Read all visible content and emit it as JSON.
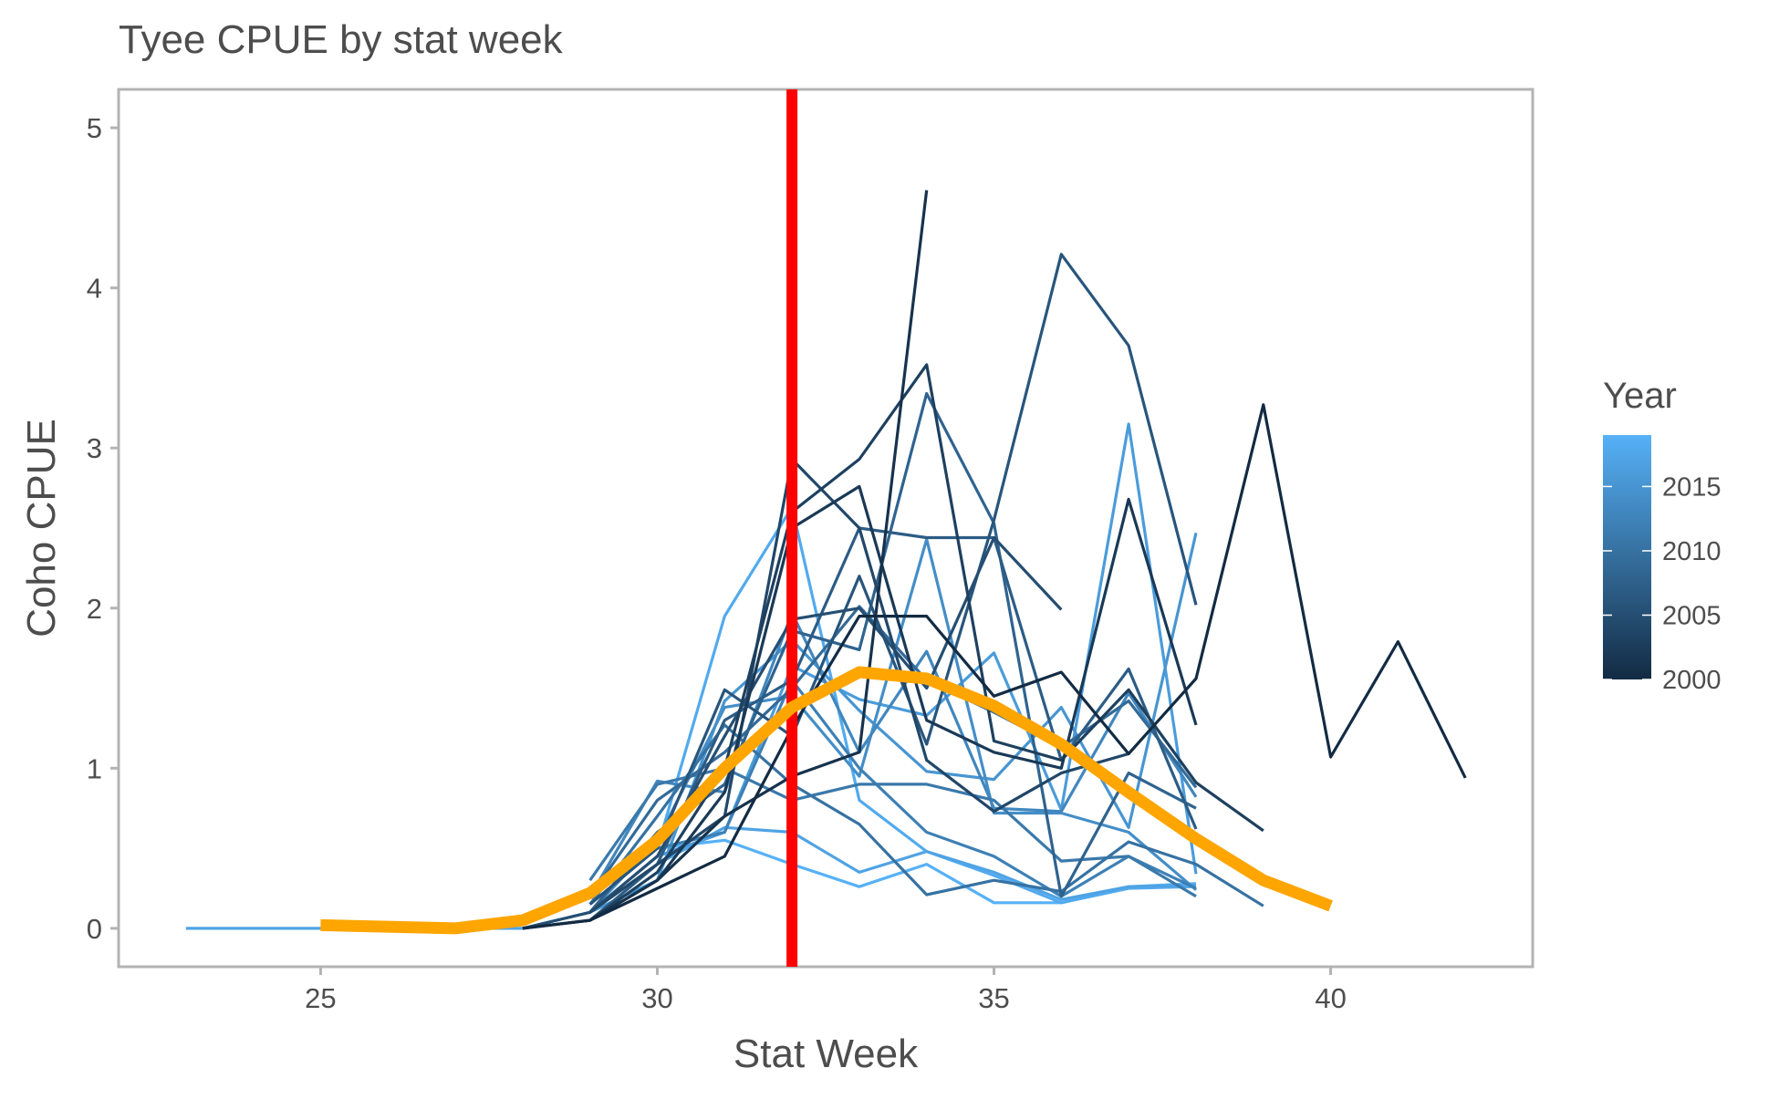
{
  "chart_data": {
    "type": "line",
    "title": "Tyee CPUE by stat week",
    "xlabel": "Stat Week",
    "ylabel": "Coho CPUE",
    "xlim": [
      22.0,
      43.0
    ],
    "ylim": [
      -0.24,
      5.24
    ],
    "x_ticks": [
      "25",
      "30",
      "35",
      "40"
    ],
    "y_ticks": [
      "0",
      "1",
      "2",
      "3",
      "4",
      "5"
    ],
    "grid": false,
    "legend": {
      "title": "Year",
      "position": "right",
      "type": "colorbar",
      "range": [
        2000,
        2019
      ],
      "ticks": [
        "2000",
        "2005",
        "2010",
        "2015"
      ],
      "color_low": "#132b43",
      "color_high": "#56b1f7"
    },
    "vline": {
      "x": 32,
      "color": "#ff0000"
    },
    "series": [
      {
        "year": 2000,
        "x": [
          28,
          29,
          30,
          31,
          32,
          33,
          34,
          35,
          36,
          37,
          38,
          39,
          40,
          41,
          42
        ],
        "y": [
          0,
          0.05,
          0.25,
          0.45,
          1.25,
          1.95,
          1.95,
          1.45,
          1.6,
          1.09,
          1.56,
          3.27,
          1.07,
          1.79,
          0.94
        ]
      },
      {
        "year": 2001,
        "x": [
          28,
          29,
          30,
          31,
          32,
          33,
          34
        ],
        "y": [
          0,
          0.05,
          0.3,
          0.7,
          0.95,
          1.1,
          4.61
        ]
      },
      {
        "year": 2002,
        "x": [
          29,
          30,
          31,
          32,
          33,
          34,
          35,
          36,
          37,
          38
        ],
        "y": [
          0.05,
          0.3,
          0.85,
          2.5,
          2.76,
          1.3,
          1.1,
          1.0,
          2.68,
          1.27
        ]
      },
      {
        "year": 2003,
        "x": [
          29,
          30,
          31,
          32,
          33,
          34,
          35,
          36,
          37,
          38,
          39
        ],
        "y": [
          0.05,
          0.35,
          1.0,
          2.6,
          2.93,
          3.52,
          1.17,
          1.05,
          1.49,
          0.91,
          0.61
        ]
      },
      {
        "year": 2004,
        "x": [
          29,
          30,
          31,
          32,
          33,
          34,
          35,
          36,
          37
        ],
        "y": [
          0.1,
          0.4,
          0.7,
          2.93,
          2.5,
          1.05,
          0.73,
          0.97,
          1.09
        ]
      },
      {
        "year": 2005,
        "x": [
          28,
          29,
          30,
          31,
          32,
          33,
          34,
          35,
          36
        ],
        "y": [
          0,
          0.1,
          0.45,
          1.2,
          1.93,
          2.0,
          1.5,
          2.44,
          1.99
        ]
      },
      {
        "year": 2006,
        "x": [
          29,
          30,
          31,
          32,
          33,
          34,
          35,
          36,
          37,
          38
        ],
        "y": [
          0.15,
          0.5,
          1.49,
          1.2,
          2.2,
          1.15,
          2.55,
          4.21,
          3.64,
          2.02
        ]
      },
      {
        "year": 2007,
        "x": [
          29,
          30,
          31,
          32,
          33,
          34,
          35,
          36,
          37,
          38
        ],
        "y": [
          0.05,
          0.4,
          1.3,
          1.55,
          2.5,
          2.44,
          2.44,
          1.05,
          1.62,
          0.62
        ]
      },
      {
        "year": 2008,
        "x": [
          29,
          30,
          31,
          32,
          33,
          34,
          35,
          36,
          37,
          38
        ],
        "y": [
          0.1,
          0.6,
          0.9,
          1.86,
          1.74,
          3.34,
          2.53,
          0.2,
          0.97,
          0.75
        ]
      },
      {
        "year": 2009,
        "x": [
          29,
          30,
          31,
          32,
          33,
          34,
          35,
          36,
          37,
          38
        ],
        "y": [
          0.2,
          0.8,
          1.1,
          1.5,
          2.01,
          1.55,
          1.35,
          1.13,
          1.42,
          0.88
        ]
      },
      {
        "year": 2010,
        "x": [
          29,
          30,
          31,
          32,
          33,
          34,
          35,
          36,
          37,
          38,
          39
        ],
        "y": [
          0.15,
          0.7,
          1.27,
          0.9,
          0.65,
          0.21,
          0.3,
          0.23,
          0.54,
          0.4,
          0.14
        ]
      },
      {
        "year": 2011,
        "x": [
          29,
          30,
          31,
          32,
          33,
          34,
          35,
          36,
          37,
          38
        ],
        "y": [
          0.3,
          0.9,
          1.0,
          0.8,
          0.9,
          0.9,
          0.8,
          0.42,
          0.45,
          0.2
        ]
      },
      {
        "year": 2012,
        "x": [
          29,
          30,
          31,
          32,
          33,
          34,
          35,
          36,
          37,
          38
        ],
        "y": [
          0.2,
          0.5,
          0.6,
          1.55,
          1.0,
          0.6,
          0.45,
          0.2,
          0.45,
          0.25
        ]
      },
      {
        "year": 2013,
        "x": [
          29,
          30,
          31,
          32,
          33,
          34,
          35,
          36,
          37,
          38
        ],
        "y": [
          0.2,
          0.92,
          0.85,
          1.97,
          1.1,
          1.73,
          0.75,
          0.73,
          1.47,
          0.82
        ]
      },
      {
        "year": 2014,
        "x": [
          29,
          30,
          31,
          32,
          33,
          34,
          35,
          36,
          37,
          38
        ],
        "y": [
          0.1,
          0.55,
          1.38,
          1.45,
          0.95,
          2.43,
          0.72,
          0.72,
          0.6,
          0.24
        ]
      },
      {
        "year": 2015,
        "x": [
          29,
          30,
          31,
          32,
          33,
          34,
          35,
          36,
          37,
          38
        ],
        "y": [
          0.1,
          0.3,
          1.42,
          1.8,
          1.36,
          0.98,
          0.93,
          1.38,
          0.63,
          2.47
        ]
      },
      {
        "year": 2016,
        "x": [
          29,
          30,
          31,
          32,
          33,
          34,
          35,
          36,
          37,
          38
        ],
        "y": [
          0.1,
          0.45,
          0.6,
          1.64,
          1.43,
          1.33,
          1.72,
          0.74,
          3.15,
          0.34
        ]
      },
      {
        "year": 2017,
        "x": [
          23,
          24,
          25,
          26,
          27,
          28,
          29,
          30,
          31,
          32,
          33,
          34,
          35,
          36,
          37,
          38
        ],
        "y": [
          0,
          0,
          0,
          0,
          0,
          0,
          0.1,
          0.4,
          0.63,
          0.6,
          0.35,
          0.48,
          0.35,
          0.18,
          0.26,
          0.27
        ]
      },
      {
        "year": 2018,
        "x": [
          29,
          30,
          31,
          32,
          33,
          34,
          35,
          36,
          37,
          38
        ],
        "y": [
          0.2,
          0.5,
          1.95,
          2.63,
          0.8,
          0.48,
          0.33,
          0.16,
          0.25,
          0.26
        ]
      },
      {
        "year": 2019,
        "x": [
          29,
          30,
          31,
          32,
          33,
          34,
          35,
          36,
          37,
          38
        ],
        "y": [
          0.15,
          0.5,
          0.55,
          0.4,
          0.26,
          0.4,
          0.16,
          0.16,
          0.26,
          0.28
        ]
      }
    ],
    "average": {
      "color": "#ffa500",
      "x": [
        25,
        26,
        27,
        28,
        29,
        30,
        31,
        32,
        33,
        34,
        35,
        36,
        37,
        38,
        39,
        40
      ],
      "y": [
        0.02,
        0.01,
        0.0,
        0.05,
        0.22,
        0.55,
        1.0,
        1.38,
        1.6,
        1.56,
        1.39,
        1.15,
        0.85,
        0.56,
        0.3,
        0.14
      ]
    }
  }
}
